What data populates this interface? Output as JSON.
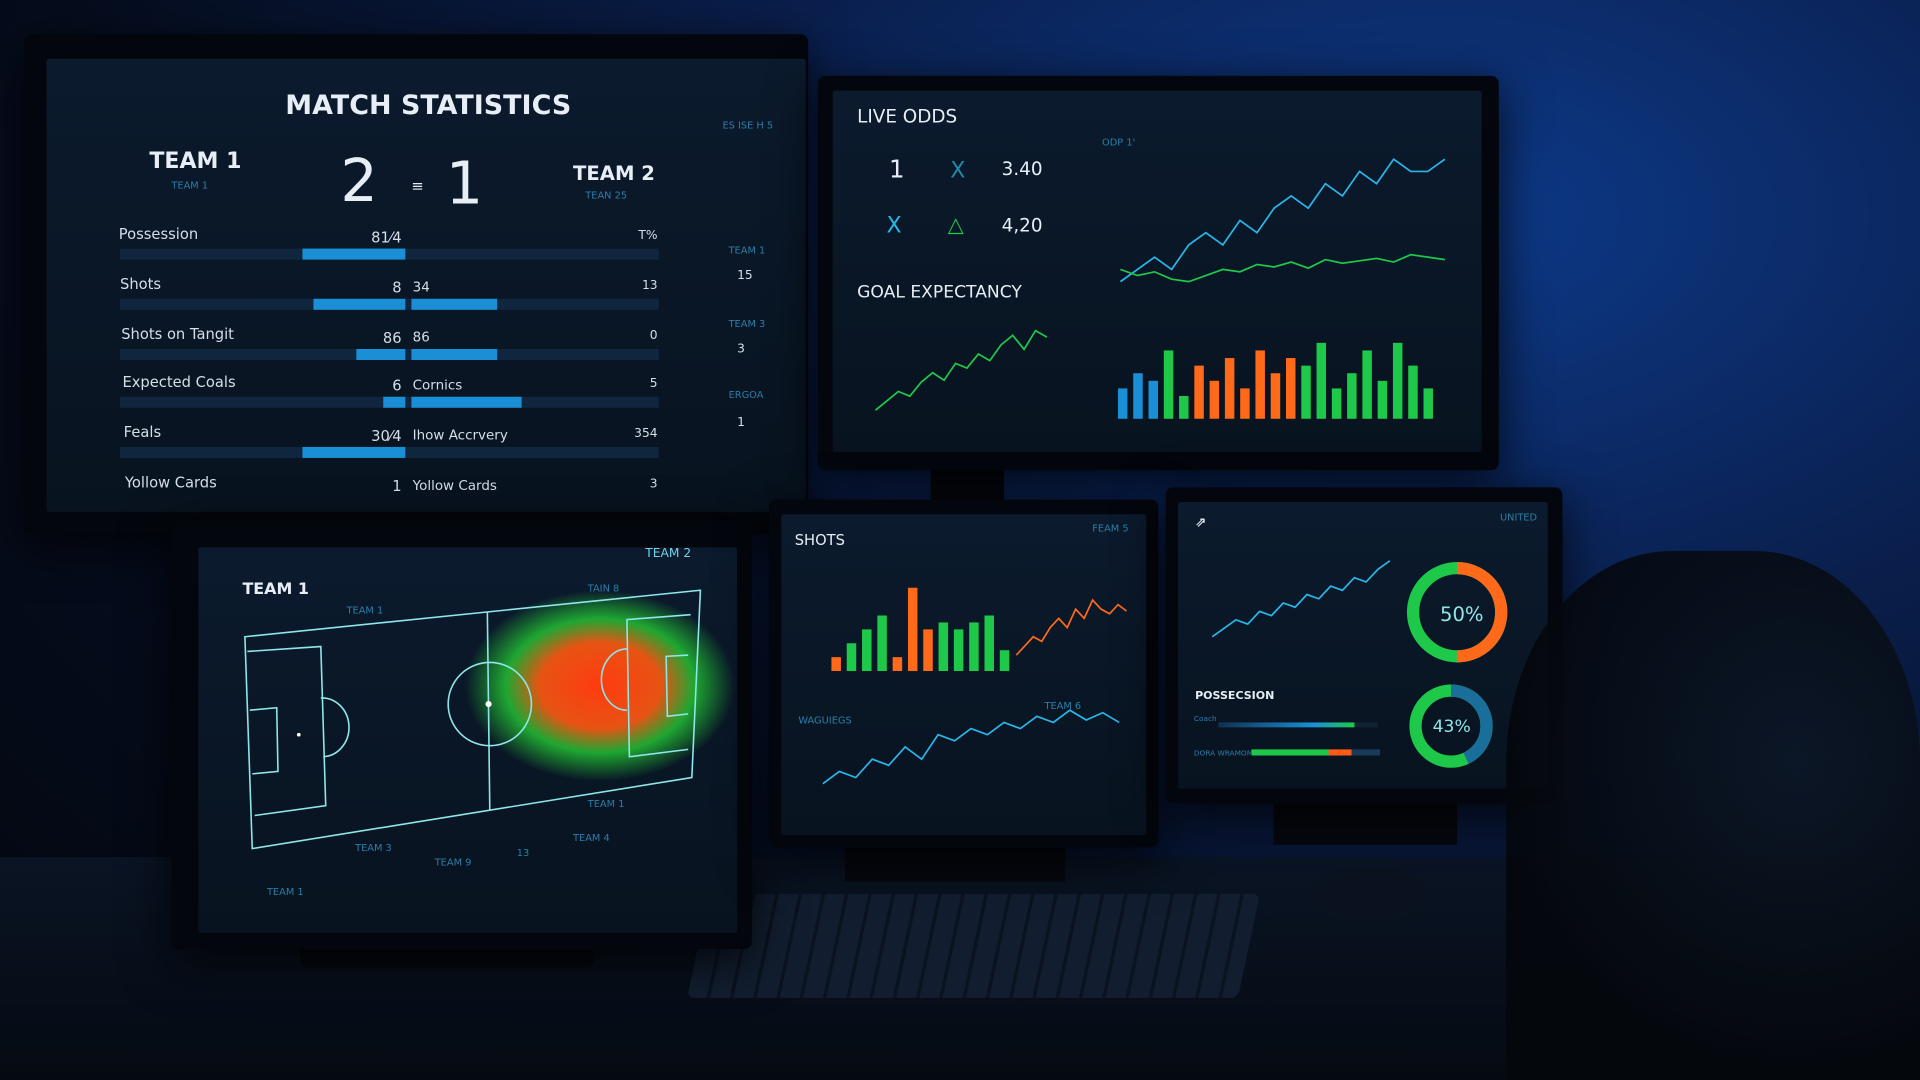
{
  "match_stats": {
    "title": "MATCH STATISTICS",
    "team1": {
      "name": "TEAM 1",
      "sub": "TEAM 1",
      "score": "2"
    },
    "team2": {
      "name": "TEAM 2",
      "sub": "TEAN 25",
      "score": "1"
    },
    "separator": "≡",
    "rows": [
      {
        "label": "Possession",
        "left": "81⁄4",
        "mid": "",
        "right": "T%",
        "left_bar": 0.19,
        "right_bar": 0
      },
      {
        "label": "Shots",
        "left": "8",
        "mid": "34",
        "right": "13",
        "left_bar": 0.17,
        "right_bar": 0.35
      },
      {
        "label": "Shots on Tangit",
        "left": "86",
        "mid": "86",
        "right": "0",
        "left_bar": 0.09,
        "right_bar": 0.35
      },
      {
        "label": "Expected Coals",
        "left": "6",
        "mid": "Cornics",
        "right": "5",
        "left_bar": 0.04,
        "right_bar": 0.45
      },
      {
        "label": "Feals",
        "left": "30⁄4",
        "mid": "Ihow Accrvery",
        "right": "354",
        "left_bar": 0.19,
        "right_bar": 0
      },
      {
        "label": "Yollow Cards",
        "left": "1",
        "mid": "Yollow Cards",
        "right": "3",
        "left_bar": 0,
        "right_bar": 0
      }
    ],
    "side": {
      "header": "ES ISE H 5",
      "items": [
        {
          "label": "TEAM 1",
          "value": "15"
        },
        {
          "label": "TEAM 3",
          "value": "3"
        },
        {
          "label": "ERGOA",
          "value": "1"
        }
      ]
    }
  },
  "live_odds": {
    "title": "LIVE ODDS",
    "rows": [
      {
        "a": "1",
        "b": "X",
        "value": "3.40"
      },
      {
        "a": "X",
        "b": "△",
        "value": "4,20"
      }
    ],
    "chart_label": "ODP 1'"
  },
  "goal_expectancy": {
    "title": "GOAL EXPECTANCY"
  },
  "heatmap": {
    "title": "TEAM 1",
    "team2": "TEAM 2",
    "labels": [
      "TEAM 1",
      "TAIN 8",
      "TEAM 3",
      "TEAM 9",
      "TEAM 4",
      "TEAM 1",
      "TEAM 1",
      "13"
    ]
  },
  "shots": {
    "title": "SHOTS",
    "legend": "FEAM 5",
    "sub_title": "WAGUIEGS",
    "sub_legend": "TEAM 6"
  },
  "possession_panel": {
    "corner": "UNITED",
    "donut1": "50%",
    "donut2": "43%",
    "section": "POSSECSION",
    "bar_labels": [
      "Coach",
      "DORA WRAMOM"
    ],
    "donut1_value": 50,
    "donut2_value": 43
  },
  "colors": {
    "blue": "#1a8fd6",
    "cyan": "#29b6e8",
    "green": "#1ec94a",
    "orange": "#ff6a1a",
    "text": "#e8eef5"
  },
  "chart_data": [
    {
      "type": "line",
      "series": [
        {
          "values": [
            3,
            4,
            5,
            4,
            6,
            7,
            6,
            8,
            7,
            9,
            10,
            9,
            11,
            10,
            12,
            11,
            13,
            12,
            12,
            13
          ]
        },
        {
          "values": [
            4,
            3.5,
            3.8,
            3.2,
            3,
            3.5,
            4,
            3.8,
            4.4,
            4.2,
            4.6,
            4.1,
            4.8,
            4.5,
            4.7,
            4.9,
            4.6,
            5.2,
            5,
            4.8
          ]
        }
      ]
    },
    {
      "type": "line",
      "series": [
        {
          "values": [
            1,
            2,
            3,
            2.5,
            4,
            5,
            4.2,
            6,
            5.5,
            7,
            6.3,
            8,
            9,
            7.5,
            9.5,
            8.8
          ]
        }
      ]
    },
    {
      "type": "bar",
      "values": [
        4,
        6,
        5,
        9,
        3,
        7,
        5,
        8,
        4,
        9,
        6,
        8,
        7,
        10,
        4,
        6,
        9,
        5,
        10,
        7,
        4
      ],
      "colors": [
        "blue",
        "blue",
        "blue",
        "green",
        "green",
        "orange",
        "orange",
        "orange",
        "orange",
        "orange",
        "orange",
        "orange",
        "green",
        "green",
        "green",
        "green",
        "green",
        "green",
        "green",
        "green",
        "green"
      ]
    },
    {
      "type": "bar",
      "values": [
        2,
        4,
        6,
        8,
        2,
        12,
        6,
        7,
        6,
        7,
        8,
        3
      ],
      "colors": [
        "orange",
        "green",
        "green",
        "green",
        "orange",
        "orange",
        "orange",
        "green",
        "green",
        "green",
        "green",
        "green"
      ]
    },
    {
      "type": "line",
      "series": [
        {
          "values": [
            2,
            3,
            4,
            3.5,
            5,
            6,
            5,
            7,
            6,
            8,
            7,
            6.5,
            7.5,
            6.8
          ]
        }
      ]
    },
    {
      "type": "line",
      "series": [
        {
          "values": [
            2,
            3,
            2.5,
            4,
            3.5,
            5,
            4,
            6,
            5.5,
            6.5,
            6,
            7,
            6.5,
            7.5,
            7,
            8,
            7.2,
            7.8,
            7
          ]
        }
      ]
    },
    {
      "type": "line",
      "series": [
        {
          "values": [
            2,
            3,
            4,
            3.5,
            5,
            4.5,
            6,
            5.5,
            7,
            6.5,
            8,
            7.5,
            9,
            8.5,
            10,
            11
          ]
        }
      ]
    }
  ]
}
